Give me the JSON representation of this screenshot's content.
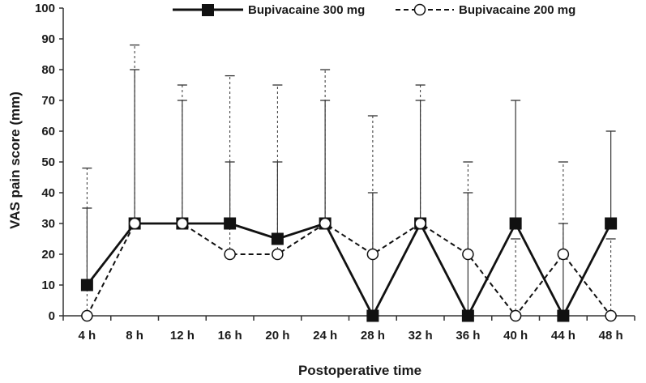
{
  "chart_data": {
    "type": "line",
    "title": "",
    "xlabel": "Postoperative time",
    "ylabel": "VAS pain score (mm)",
    "categories": [
      "4 h",
      "8 h",
      "12 h",
      "16 h",
      "20 h",
      "24 h",
      "28 h",
      "32 h",
      "36 h",
      "40 h",
      "44 h",
      "48 h"
    ],
    "ylim": [
      0,
      100
    ],
    "yticks": [
      0,
      10,
      20,
      30,
      40,
      50,
      60,
      70,
      80,
      90,
      100
    ],
    "grid": false,
    "legend_position": "top",
    "series": [
      {
        "name": "Bupivacaine 300 mg",
        "values": [
          10,
          30,
          30,
          30,
          25,
          30,
          0,
          30,
          0,
          30,
          0,
          30
        ],
        "error_upper": [
          35,
          80,
          70,
          50,
          50,
          70,
          40,
          70,
          40,
          70,
          30,
          60
        ],
        "line_style": "solid",
        "marker": "filled-square",
        "color": "#111111"
      },
      {
        "name": "Bupivacaine 200 mg",
        "values": [
          0,
          30,
          30,
          20,
          20,
          30,
          20,
          30,
          20,
          0,
          20,
          0
        ],
        "error_upper": [
          48,
          88,
          75,
          78,
          75,
          80,
          65,
          75,
          50,
          25,
          50,
          25
        ],
        "line_style": "dashed",
        "marker": "open-circle",
        "color": "#111111"
      }
    ]
  }
}
